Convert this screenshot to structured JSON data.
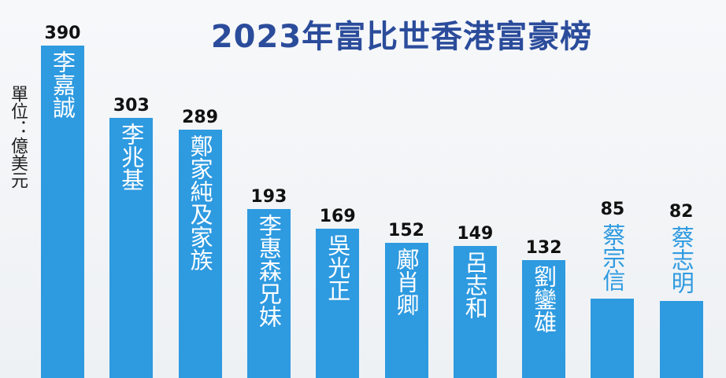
{
  "chart_data": {
    "type": "bar",
    "title": "2023年富比世香港富豪榜",
    "unit_label": "單位：億美元",
    "categories": [
      "李嘉誠",
      "李兆基",
      "鄭家純及家族",
      "李惠森兄妹",
      "吳光正",
      "鄺肖卿",
      "呂志和",
      "劉鑾雄",
      "蔡宗信",
      "蔡志明"
    ],
    "values": [
      390,
      303,
      289,
      193,
      169,
      152,
      149,
      132,
      85,
      82
    ],
    "color": "#2e9ae0"
  }
}
